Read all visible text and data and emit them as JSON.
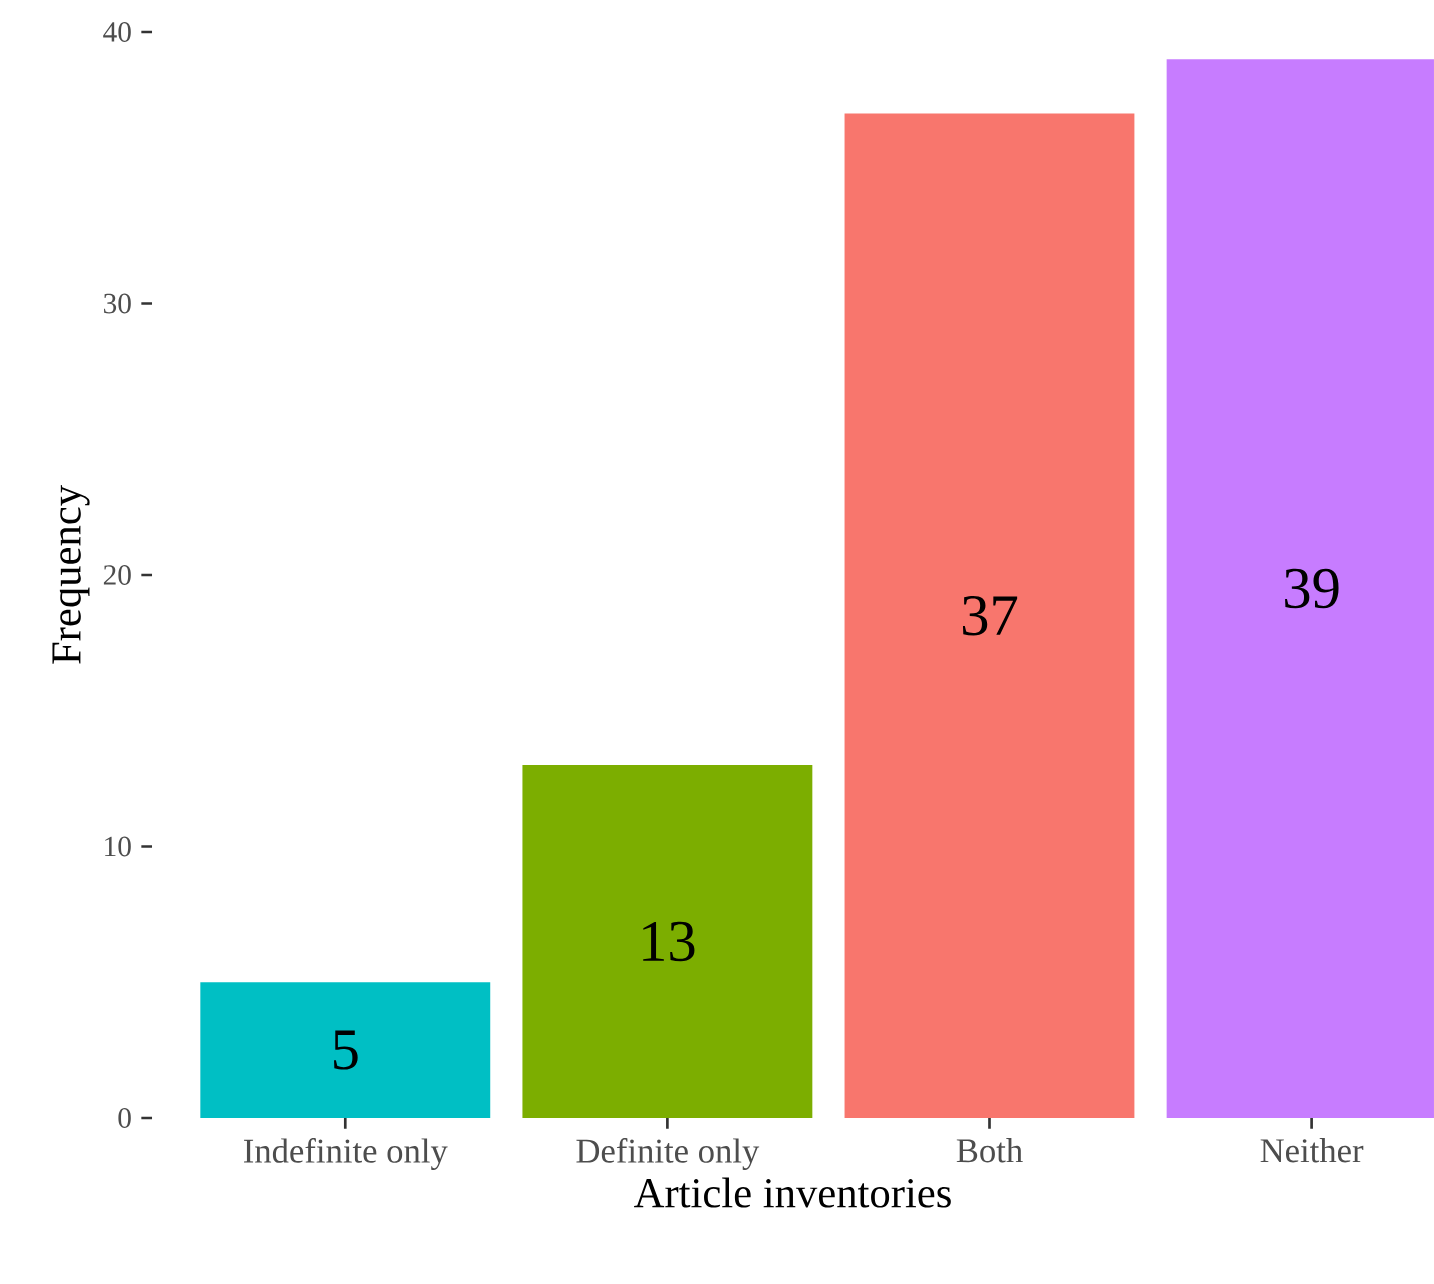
{
  "chart_data": {
    "type": "bar",
    "xlabel": "Article inventories",
    "ylabel": "Frequency",
    "categories": [
      "Indefinite only",
      "Definite only",
      "Both",
      "Neither"
    ],
    "values": [
      5,
      13,
      37,
      39
    ],
    "colors": [
      "#00bfc4",
      "#7cae00",
      "#f8766d",
      "#c77cff"
    ],
    "ylim": [
      0,
      40
    ],
    "yticks": [
      0,
      10,
      20,
      30,
      40
    ],
    "data_labels": true
  }
}
